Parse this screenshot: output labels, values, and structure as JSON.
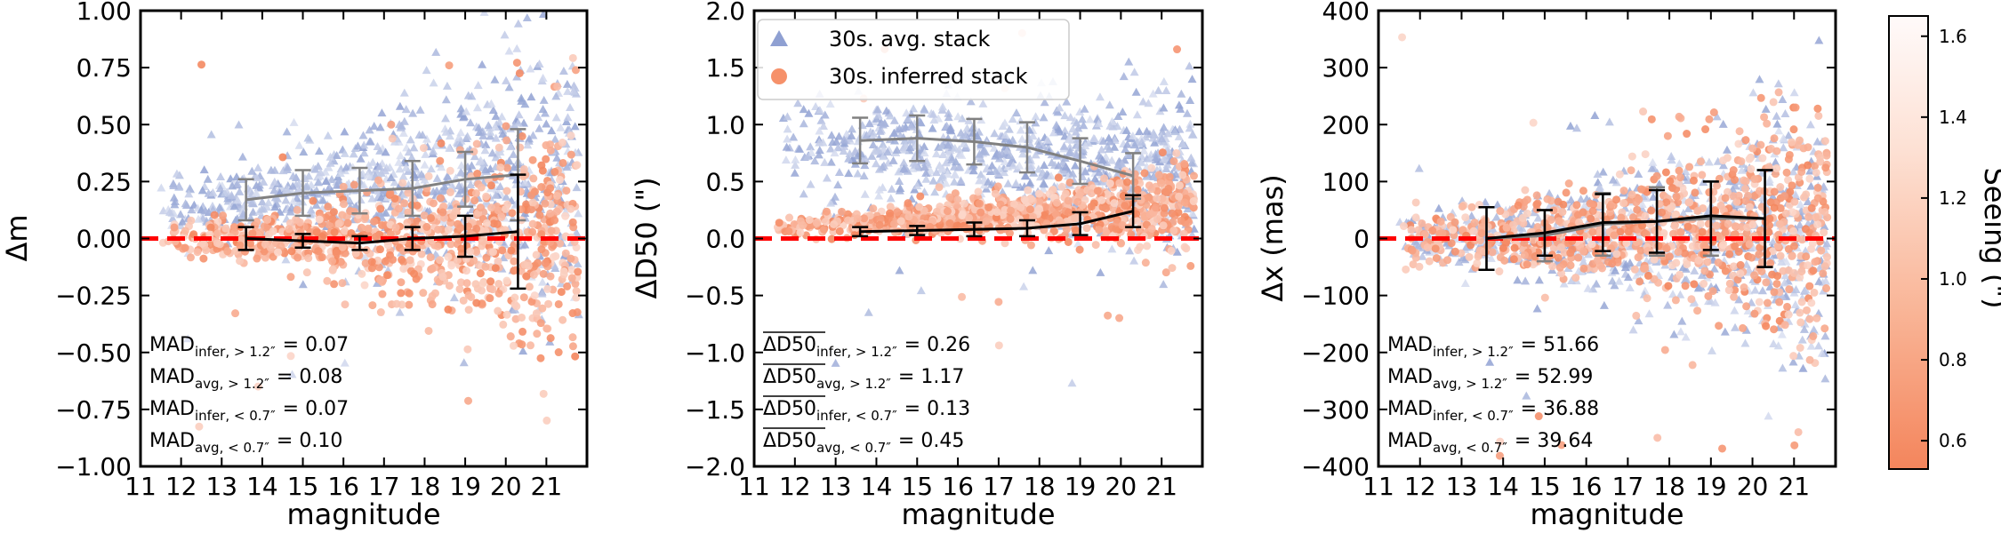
{
  "figure": {
    "colorbar_label": "Seeing (\")"
  },
  "colorbar": {
    "label": "Seeing (\")",
    "range": [
      0.53,
      1.65
    ],
    "ticks": [
      "0.6",
      "0.8",
      "1.0",
      "1.2",
      "1.4",
      "1.6"
    ],
    "tick_values": [
      0.6,
      0.8,
      1.0,
      1.2,
      1.4,
      1.6
    ],
    "color_low": "#f4855c",
    "color_high": "#fffafa",
    "color_avg_blue": "#8fa0d2"
  },
  "colors": {
    "reference_line": "#ff0000",
    "avg_curve": "#808080",
    "infer_curve": "#000000",
    "inferred_marker": "#f6916a",
    "avg_marker": "#8fa0d2"
  },
  "legend": {
    "entries": [
      {
        "label": "30s. avg. stack",
        "marker": "triangle",
        "color": "#8fa0d2"
      },
      {
        "label": "30s. inferred stack",
        "marker": "circle",
        "color": "#f6916a"
      }
    ]
  },
  "chart_data": [
    {
      "type": "scatter",
      "id": "delta-m",
      "xlabel": "magnitude",
      "ylabel": "Δm",
      "xlim": [
        11,
        22
      ],
      "ylim": [
        -1.0,
        1.0
      ],
      "xticks": [
        11,
        12,
        13,
        14,
        15,
        16,
        17,
        18,
        19,
        20,
        21
      ],
      "xtick_labels": [
        "11",
        "12",
        "13",
        "14",
        "15",
        "16",
        "17",
        "18",
        "19",
        "20",
        "21"
      ],
      "yticks": [
        -1.0,
        -0.75,
        -0.5,
        -0.25,
        0.0,
        0.25,
        0.5,
        0.75,
        1.0
      ],
      "ytick_labels": [
        "−1.00",
        "−0.75",
        "−0.50",
        "−0.25",
        "0.00",
        "0.25",
        "0.50",
        "0.75",
        "1.00"
      ],
      "reference_y": 0,
      "series": [
        {
          "name": "30s. avg. stack (binned median)",
          "x": [
            13.6,
            15.0,
            16.4,
            17.7,
            19.0,
            20.3
          ],
          "y": [
            0.17,
            0.2,
            0.21,
            0.22,
            0.26,
            0.28
          ],
          "yerr": [
            0.09,
            0.1,
            0.1,
            0.12,
            0.12,
            0.2
          ]
        },
        {
          "name": "30s. inferred stack (binned median)",
          "x": [
            13.6,
            15.0,
            16.4,
            17.7,
            19.0,
            20.3
          ],
          "y": [
            0.0,
            -0.01,
            -0.02,
            0.0,
            0.01,
            0.03
          ],
          "yerr": [
            0.05,
            0.03,
            0.03,
            0.05,
            0.09,
            0.25
          ]
        }
      ],
      "cloud": {
        "avg": {
          "x_range": [
            11.5,
            21.8
          ],
          "center_start": 0.15,
          "center_end": 0.3,
          "spread_start": 0.08,
          "spread_end": 0.35,
          "outlier_max": 0.95
        },
        "infer": {
          "x_range": [
            11.5,
            21.8
          ],
          "center_start": 0.0,
          "center_end": -0.02,
          "spread_start": 0.04,
          "spread_end": 0.3,
          "outlier_max": 0.95
        }
      },
      "mad_labels": [
        {
          "base": "MAD",
          "sub": "infer, > 1.2″",
          "value": "= 0.07"
        },
        {
          "base": "MAD",
          "sub": "avg, > 1.2″",
          "value": "= 0.08"
        },
        {
          "base": "MAD",
          "sub": "infer, < 0.7″",
          "value": "= 0.07"
        },
        {
          "base": "MAD",
          "sub": "avg, < 0.7″",
          "value": "= 0.10"
        }
      ]
    },
    {
      "type": "scatter",
      "id": "delta-d50",
      "xlabel": "magnitude",
      "ylabel": "ΔD50 (\")",
      "xlim": [
        11,
        22
      ],
      "ylim": [
        -2.0,
        2.0
      ],
      "xticks": [
        11,
        12,
        13,
        14,
        15,
        16,
        17,
        18,
        19,
        20,
        21
      ],
      "xtick_labels": [
        "11",
        "12",
        "13",
        "14",
        "15",
        "16",
        "17",
        "18",
        "19",
        "20",
        "21"
      ],
      "yticks": [
        -2.0,
        -1.5,
        -1.0,
        -0.5,
        0.0,
        0.5,
        1.0,
        1.5,
        2.0
      ],
      "ytick_labels": [
        "−2.0",
        "−1.5",
        "−1.0",
        "−0.5",
        "0.0",
        "0.5",
        "1.0",
        "1.5",
        "2.0"
      ],
      "reference_y": 0,
      "series": [
        {
          "name": "30s. avg. stack (binned median)",
          "x": [
            13.6,
            15.0,
            16.4,
            17.7,
            19.0,
            20.3
          ],
          "y": [
            0.86,
            0.88,
            0.85,
            0.8,
            0.68,
            0.55
          ],
          "yerr": [
            0.2,
            0.2,
            0.2,
            0.22,
            0.2,
            0.2
          ]
        },
        {
          "name": "30s. inferred stack (binned median)",
          "x": [
            13.6,
            15.0,
            16.4,
            17.7,
            19.0,
            20.3
          ],
          "y": [
            0.06,
            0.07,
            0.08,
            0.09,
            0.13,
            0.24
          ],
          "yerr": [
            0.04,
            0.04,
            0.06,
            0.07,
            0.1,
            0.14
          ]
        }
      ],
      "cloud": {
        "avg": {
          "x_range": [
            11.5,
            21.8
          ],
          "center_start": 0.85,
          "center_end": 0.6,
          "spread_start": 0.2,
          "spread_end": 0.35,
          "outlier_max": 1.95
        },
        "infer": {
          "x_range": [
            11.5,
            21.8
          ],
          "center_start": 0.1,
          "center_end": 0.3,
          "spread_start": 0.05,
          "spread_end": 0.2,
          "outlier_max": 1.95
        }
      },
      "legend_here": true,
      "mad_labels": [
        {
          "base": "ΔD50",
          "overline": true,
          "sub": "infer, > 1.2″",
          "value": "= 0.26"
        },
        {
          "base": "ΔD50",
          "overline": true,
          "sub": "avg, > 1.2″",
          "value": "= 1.17"
        },
        {
          "base": "ΔD50",
          "overline": true,
          "sub": "infer, < 0.7″",
          "value": "= 0.13"
        },
        {
          "base": "ΔD50",
          "overline": true,
          "sub": "avg, < 0.7″",
          "value": "= 0.45"
        }
      ]
    },
    {
      "type": "scatter",
      "id": "delta-x",
      "xlabel": "magnitude",
      "ylabel": "Δx (mas)",
      "xlim": [
        11,
        22
      ],
      "ylim": [
        -400,
        400
      ],
      "xticks": [
        11,
        12,
        13,
        14,
        15,
        16,
        17,
        18,
        19,
        20,
        21
      ],
      "xtick_labels": [
        "11",
        "12",
        "13",
        "14",
        "15",
        "16",
        "17",
        "18",
        "19",
        "20",
        "21"
      ],
      "yticks": [
        -400,
        -300,
        -200,
        -100,
        0,
        100,
        200,
        300,
        400
      ],
      "ytick_labels": [
        "−400",
        "−300",
        "−200",
        "−100",
        "0",
        "100",
        "200",
        "300",
        "400"
      ],
      "reference_y": 0,
      "series": [
        {
          "name": "30s. avg. stack (binned median)",
          "x": [
            13.6,
            15.0,
            16.4,
            17.7,
            19.0,
            20.3
          ],
          "y": [
            0,
            5,
            25,
            30,
            35,
            35
          ],
          "yerr": [
            55,
            45,
            55,
            60,
            65,
            85
          ]
        },
        {
          "name": "30s. inferred stack (binned median)",
          "x": [
            13.6,
            15.0,
            16.4,
            17.7,
            19.0,
            20.3
          ],
          "y": [
            0,
            10,
            28,
            30,
            40,
            35
          ],
          "yerr": [
            55,
            40,
            50,
            55,
            60,
            85
          ]
        }
      ],
      "cloud": {
        "avg": {
          "x_range": [
            11.5,
            21.8
          ],
          "center_start": 0,
          "center_end": 0,
          "spread_start": 25,
          "spread_end": 130,
          "outlier_max": 395
        },
        "infer": {
          "x_range": [
            11.5,
            21.8
          ],
          "center_start": 0,
          "center_end": 30,
          "spread_start": 25,
          "spread_end": 110,
          "outlier_max": 395
        }
      },
      "mad_labels": [
        {
          "base": "MAD",
          "sub": "infer, > 1.2″",
          "value": "= 51.66"
        },
        {
          "base": "MAD",
          "sub": "avg, > 1.2″",
          "value": "= 52.99"
        },
        {
          "base": "MAD",
          "sub": "infer, < 0.7″",
          "value": "= 36.88"
        },
        {
          "base": "MAD",
          "sub": "avg, < 0.7″",
          "value": "= 39.64"
        }
      ]
    }
  ]
}
